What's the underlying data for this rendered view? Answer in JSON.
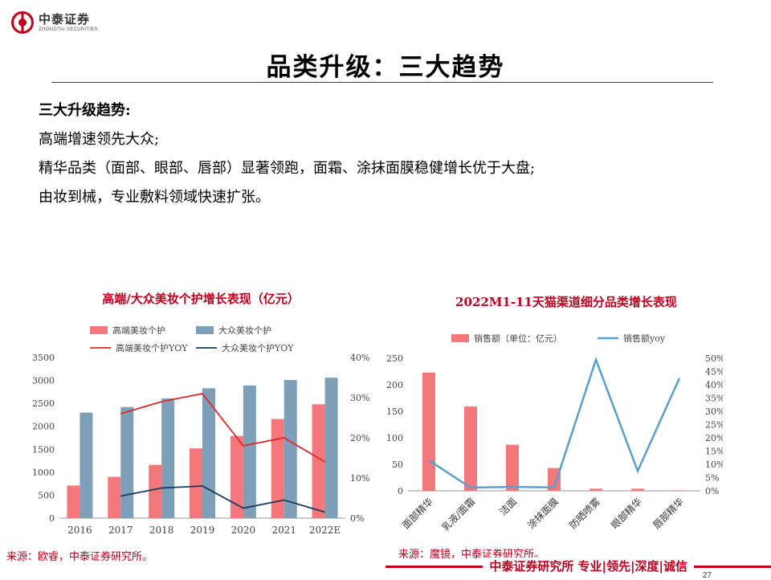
{
  "header": {
    "logo_cn": "中泰证券",
    "logo_en": "ZHONGTAI SECURITIES",
    "title": "品类升级：三大趋势"
  },
  "bullets": {
    "head": "三大升级趋势:",
    "items": [
      "高端增速领先大众;",
      "精华品类（面部、眼部、唇部）显著领跑，面霜、涂抹面膜稳健增长优于大盘;",
      "由妆到械，专业敷料领域快速扩张。"
    ]
  },
  "chart_data": [
    {
      "type": "bar",
      "title": "高端/大众美妆个护增长表现（亿元）",
      "categories": [
        "2016",
        "2017",
        "2018",
        "2019",
        "2020",
        "2021",
        "2022E"
      ],
      "series": [
        {
          "name": "高端美妆个护",
          "kind": "bar",
          "axis": "left",
          "color": "#f4777b",
          "values": [
            710,
            900,
            1160,
            1520,
            1790,
            2160,
            2480
          ]
        },
        {
          "name": "大众美妆个护",
          "kind": "bar",
          "axis": "left",
          "color": "#7d9fb8",
          "values": [
            2300,
            2420,
            2610,
            2830,
            2890,
            3010,
            3060
          ]
        },
        {
          "name": "高端美妆个护YOY",
          "kind": "line",
          "axis": "right",
          "color": "#e02828",
          "values": [
            null,
            0.26,
            0.29,
            0.31,
            0.18,
            0.2,
            0.14
          ]
        },
        {
          "name": "大众美妆个护YOY",
          "kind": "line",
          "axis": "right",
          "color": "#1b3a5c",
          "values": [
            null,
            0.055,
            0.075,
            0.08,
            0.025,
            0.045,
            0.015
          ]
        }
      ],
      "left_axis": {
        "min": 0,
        "max": 3500,
        "ticks": [
          "0",
          "500",
          "1000",
          "1500",
          "2000",
          "2500",
          "3000",
          "3500"
        ]
      },
      "right_axis": {
        "min": 0,
        "max": 0.4,
        "ticks": [
          "0%",
          "10%",
          "20%",
          "30%",
          "40%"
        ]
      },
      "legend": "top",
      "grid": false
    },
    {
      "type": "bar",
      "title": "2022M1-11天猫渠道细分品类增长表现",
      "categories": [
        "面部精华",
        "乳液/面霜",
        "洁面",
        "涂抹面膜",
        "防晒喷雾",
        "眼部精华",
        "唇部精华"
      ],
      "series": [
        {
          "name": "销售额（单位：亿元）",
          "kind": "bar",
          "axis": "left",
          "color": "#f4777b",
          "values": [
            223,
            159,
            87,
            43,
            4,
            4,
            1
          ]
        },
        {
          "name": "销售额yoy",
          "kind": "line",
          "axis": "right",
          "color": "#5a9fd4",
          "values": [
            0.115,
            0.012,
            0.015,
            0.013,
            0.495,
            0.075,
            0.425
          ]
        }
      ],
      "left_axis": {
        "min": 0,
        "max": 250,
        "ticks": [
          "0",
          "50",
          "100",
          "150",
          "200",
          "250"
        ]
      },
      "right_axis": {
        "min": 0,
        "max": 0.5,
        "ticks": [
          "0%",
          "5%",
          "10%",
          "15%",
          "20%",
          "25%",
          "30%",
          "35%",
          "40%",
          "45%",
          "50%"
        ]
      },
      "legend": "top",
      "grid": false
    }
  ],
  "sources": {
    "left": "来源：欧睿，中泰证券研究所。",
    "right": "来源：魔镜，中泰证券研究所。"
  },
  "footer": {
    "slogan": "中泰证券研究所 专业|领先|深度|诚信",
    "page": "27"
  }
}
